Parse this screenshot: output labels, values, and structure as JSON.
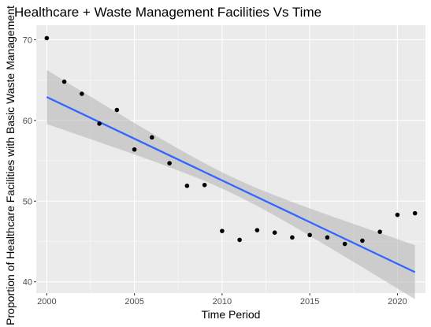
{
  "chart_data": {
    "type": "scatter",
    "title": "Healthcare + Waste Management Facilities Vs Time",
    "xlabel": "Time Period",
    "ylabel": "Proportion of Healthcare Facilities with Basic Waste Management",
    "xlim": [
      1999.4,
      2021.6
    ],
    "ylim": [
      38.6,
      71.8
    ],
    "x_ticks": [
      2000,
      2005,
      2010,
      2015,
      2020
    ],
    "y_ticks": [
      40,
      50,
      60,
      70
    ],
    "grid": true,
    "legend": "none",
    "points": {
      "x": [
        2000,
        2001,
        2002,
        2003,
        2004,
        2005,
        2006,
        2007,
        2008,
        2009,
        2010,
        2011,
        2012,
        2013,
        2014,
        2015,
        2016,
        2017,
        2018,
        2019,
        2020,
        2021
      ],
      "y": [
        70.2,
        64.8,
        63.3,
        59.6,
        61.3,
        56.4,
        57.9,
        54.7,
        51.9,
        52.0,
        46.3,
        45.2,
        46.4,
        46.1,
        45.5,
        45.8,
        45.5,
        44.7,
        45.1,
        46.2,
        48.3,
        48.5
      ]
    },
    "fit": {
      "method": "linear",
      "x": [
        2000,
        2021
      ],
      "y": [
        62.9,
        41.2
      ],
      "ci_lower": [
        59.6,
        37.8
      ],
      "ci_mid": [
        2010.5,
        52.05
      ],
      "ci_half_width_mid": 1.0,
      "ci_upper": [
        66.2,
        44.6
      ]
    },
    "colors": {
      "panel": "#EBEBEB",
      "grid_major": "#FFFFFF",
      "point": "#000000",
      "line": "#3366FF",
      "ribbon": "#B3B3B3"
    }
  }
}
